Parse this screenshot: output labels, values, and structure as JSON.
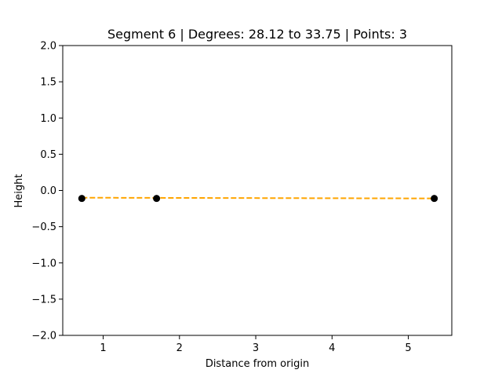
{
  "chart_data": {
    "type": "line",
    "title": "Segment 6 | Degrees: 28.12 to 33.75 | Points: 3",
    "xlabel": "Distance from origin",
    "ylabel": "Height",
    "xlim": [
      0.47,
      5.57
    ],
    "ylim": [
      -2.0,
      2.0
    ],
    "x_ticks": [
      1,
      2,
      3,
      4,
      5
    ],
    "y_ticks": [
      -2.0,
      -1.5,
      -1.0,
      -0.5,
      0.0,
      0.5,
      1.0,
      1.5,
      2.0
    ],
    "x_tick_labels": [
      "1",
      "2",
      "3",
      "4",
      "5"
    ],
    "y_tick_labels": [
      "−2.0",
      "−1.5",
      "−1.0",
      "−0.5",
      "0.0",
      "0.5",
      "1.0",
      "1.5",
      "2.0"
    ],
    "grid": false,
    "legend": false,
    "series": [
      {
        "style": "scatter",
        "color": "#000000",
        "x": [
          0.72,
          1.7,
          5.34
        ],
        "y": [
          -0.11,
          -0.11,
          -0.11
        ]
      },
      {
        "style": "dashed-line",
        "color": "#FFA500",
        "x": [
          0.72,
          5.34
        ],
        "y": [
          -0.1,
          -0.11
        ]
      }
    ]
  }
}
